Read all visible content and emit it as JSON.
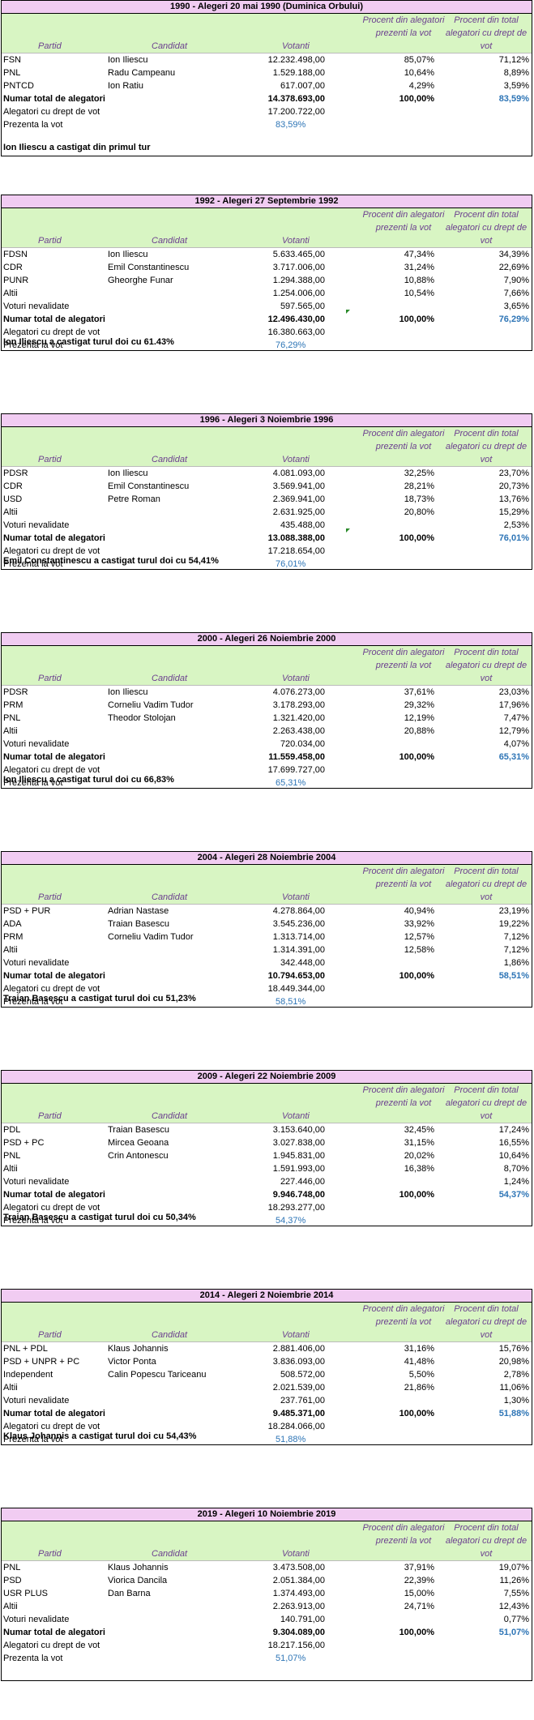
{
  "headers": {
    "partid": "Partid",
    "candidat": "Candidat",
    "votanti": "Votanti",
    "procent_prezenti": "Procent din alegatori prezenti la vot",
    "procent_total": "Procent din total alegatori cu drept de vot"
  },
  "labels": {
    "voturi_nevalidate": "Voturi nevalidate",
    "numar_total": "Numar total de alegatori",
    "alegatori_drept": "Alegatori cu drept de vot",
    "prezenta": "Prezenta la vot"
  },
  "elections": [
    {
      "title": "1990 - Alegeri 20 mai 1990 (Duminica Orbului)",
      "rows": [
        {
          "partid": "FSN",
          "candidat": "Ion Iliescu",
          "votanti": "12.232.498,00",
          "p1": "85,07%",
          "p2": "71,12%"
        },
        {
          "partid": "PNL",
          "candidat": "Radu Campeanu",
          "votanti": "1.529.188,00",
          "p1": "10,64%",
          "p2": "8,89%"
        },
        {
          "partid": "PNTCD",
          "candidat": "Ion Ratiu",
          "votanti": "617.007,00",
          "p1": "4,29%",
          "p2": "3,59%"
        }
      ],
      "invalid": null,
      "total": {
        "votanti": "14.378.693,00",
        "p1": "100,00%",
        "p2": "83,59%"
      },
      "eligible": "17.200.722,00",
      "turnout": "83,59%",
      "winner": "Ion Iliescu a castigat din primul tur"
    },
    {
      "title": "1992 - Alegeri 27 Septembrie 1992",
      "rows": [
        {
          "partid": "FDSN",
          "candidat": "Ion Iliescu",
          "votanti": "5.633.465,00",
          "p1": "47,34%",
          "p2": "34,39%"
        },
        {
          "partid": "CDR",
          "candidat": "Emil Constantinescu",
          "votanti": "3.717.006,00",
          "p1": "31,24%",
          "p2": "22,69%"
        },
        {
          "partid": "PUNR",
          "candidat": "Gheorghe Funar",
          "votanti": "1.294.388,00",
          "p1": "10,88%",
          "p2": "7,90%"
        },
        {
          "partid": "Altii",
          "candidat": "",
          "votanti": "1.254.006,00",
          "p1": "10,54%",
          "p2": "7,66%"
        }
      ],
      "invalid": {
        "votanti": "597.565,00",
        "p2": "3,65%"
      },
      "total": {
        "votanti": "12.496.430,00",
        "p1": "100,00%",
        "p2": "76,29%"
      },
      "eligible": "16.380.663,00",
      "turnout": "76,29%",
      "winner": "Ion Iliescu a castigat turul doi cu 61.43%"
    },
    {
      "title": "1996 - Alegeri 3 Noiembrie 1996",
      "rows": [
        {
          "partid": "PDSR",
          "candidat": "Ion Iliescu",
          "votanti": "4.081.093,00",
          "p1": "32,25%",
          "p2": "23,70%"
        },
        {
          "partid": "CDR",
          "candidat": "Emil Constantinescu",
          "votanti": "3.569.941,00",
          "p1": "28,21%",
          "p2": "20,73%"
        },
        {
          "partid": "USD",
          "candidat": "Petre Roman",
          "votanti": "2.369.941,00",
          "p1": "18,73%",
          "p2": "13,76%"
        },
        {
          "partid": "Altii",
          "candidat": "",
          "votanti": "2.631.925,00",
          "p1": "20,80%",
          "p2": "15,29%"
        }
      ],
      "invalid": {
        "votanti": "435.488,00",
        "p2": "2,53%"
      },
      "total": {
        "votanti": "13.088.388,00",
        "p1": "100,00%",
        "p2": "76,01%"
      },
      "eligible": "17.218.654,00",
      "turnout": "76,01%",
      "winner": "Emil Constantinescu a castigat turul doi cu 54,41%"
    },
    {
      "title": "2000 - Alegeri 26 Noiembrie 2000",
      "rows": [
        {
          "partid": "PDSR",
          "candidat": "Ion Iliescu",
          "votanti": "4.076.273,00",
          "p1": "37,61%",
          "p2": "23,03%"
        },
        {
          "partid": "PRM",
          "candidat": "Corneliu Vadim Tudor",
          "votanti": "3.178.293,00",
          "p1": "29,32%",
          "p2": "17,96%"
        },
        {
          "partid": "PNL",
          "candidat": "Theodor Stolojan",
          "votanti": "1.321.420,00",
          "p1": "12,19%",
          "p2": "7,47%"
        },
        {
          "partid": "Altii",
          "candidat": "",
          "votanti": "2.263.438,00",
          "p1": "20,88%",
          "p2": "12,79%"
        }
      ],
      "invalid": {
        "votanti": "720.034,00",
        "p2": "4,07%"
      },
      "total": {
        "votanti": "11.559.458,00",
        "p1": "100,00%",
        "p2": "65,31%"
      },
      "eligible": "17.699.727,00",
      "turnout": "65,31%",
      "winner": "Ion Iliescu a castigat turul doi cu 66,83%"
    },
    {
      "title": "2004 - Alegeri 28 Noiembrie 2004",
      "rows": [
        {
          "partid": "PSD + PUR",
          "candidat": "Adrian Nastase",
          "votanti": "4.278.864,00",
          "p1": "40,94%",
          "p2": "23,19%"
        },
        {
          "partid": "ADA",
          "candidat": "Traian Basescu",
          "votanti": "3.545.236,00",
          "p1": "33,92%",
          "p2": "19,22%"
        },
        {
          "partid": "PRM",
          "candidat": "Corneliu Vadim Tudor",
          "votanti": "1.313.714,00",
          "p1": "12,57%",
          "p2": "7,12%"
        },
        {
          "partid": "Altii",
          "candidat": "",
          "votanti": "1.314.391,00",
          "p1": "12,58%",
          "p2": "7,12%"
        }
      ],
      "invalid": {
        "votanti": "342.448,00",
        "p2": "1,86%"
      },
      "total": {
        "votanti": "10.794.653,00",
        "p1": "100,00%",
        "p2": "58,51%"
      },
      "eligible": "18.449.344,00",
      "turnout": "58,51%",
      "winner": "Traian Basescu a castigat turul doi cu 51,23%"
    },
    {
      "title": "2009 - Alegeri 22 Noiembrie 2009",
      "rows": [
        {
          "partid": "PDL",
          "candidat": "Traian Basescu",
          "votanti": "3.153.640,00",
          "p1": "32,45%",
          "p2": "17,24%"
        },
        {
          "partid": "PSD + PC",
          "candidat": "Mircea Geoana",
          "votanti": "3.027.838,00",
          "p1": "31,15%",
          "p2": "16,55%"
        },
        {
          "partid": "PNL",
          "candidat": "Crin Antonescu",
          "votanti": "1.945.831,00",
          "p1": "20,02%",
          "p2": "10,64%"
        },
        {
          "partid": "Altii",
          "candidat": "",
          "votanti": "1.591.993,00",
          "p1": "16,38%",
          "p2": "8,70%"
        }
      ],
      "invalid": {
        "votanti": "227.446,00",
        "p2": "1,24%"
      },
      "total": {
        "votanti": "9.946.748,00",
        "p1": "100,00%",
        "p2": "54,37%"
      },
      "eligible": "18.293.277,00",
      "turnout": "54,37%",
      "winner": "Traian Basescu a castigat turul doi cu 50,34%"
    },
    {
      "title": "2014 - Alegeri 2 Noiembrie 2014",
      "rows": [
        {
          "partid": "PNL + PDL",
          "candidat": "Klaus Johannis",
          "votanti": "2.881.406,00",
          "p1": "31,16%",
          "p2": "15,76%"
        },
        {
          "partid": "PSD + UNPR + PC",
          "candidat": "Victor Ponta",
          "votanti": "3.836.093,00",
          "p1": "41,48%",
          "p2": "20,98%"
        },
        {
          "partid": "Independent",
          "candidat": "Calin Popescu Tariceanu",
          "votanti": "508.572,00",
          "p1": "5,50%",
          "p2": "2,78%"
        },
        {
          "partid": "Altii",
          "candidat": "",
          "votanti": "2.021.539,00",
          "p1": "21,86%",
          "p2": "11,06%"
        }
      ],
      "invalid": {
        "votanti": "237.761,00",
        "p2": "1,30%"
      },
      "total": {
        "votanti": "9.485.371,00",
        "p1": "100,00%",
        "p2": "51,88%"
      },
      "eligible": "18.284.066,00",
      "turnout": "51,88%",
      "winner": "Klaus Johannis a castigat turul doi cu 54,43%"
    },
    {
      "title": "2019 - Alegeri 10 Noiembrie 2019",
      "rows": [
        {
          "partid": "PNL",
          "candidat": "Klaus Johannis",
          "votanti": "3.473.508,00",
          "p1": "37,91%",
          "p2": "19,07%"
        },
        {
          "partid": "PSD",
          "candidat": "Viorica Dancila",
          "votanti": "2.051.384,00",
          "p1": "22,39%",
          "p2": "11,26%"
        },
        {
          "partid": "USR PLUS",
          "candidat": "Dan Barna",
          "votanti": "1.374.493,00",
          "p1": "15,00%",
          "p2": "7,55%"
        },
        {
          "partid": "Altii",
          "candidat": "",
          "votanti": "2.263.913,00",
          "p1": "24,71%",
          "p2": "12,43%"
        }
      ],
      "invalid": {
        "votanti": "140.791,00",
        "p2": "0,77%"
      },
      "total": {
        "votanti": "9.304.089,00",
        "p1": "100,00%",
        "p2": "51,07%"
      },
      "eligible": "18.217.156,00",
      "turnout": "51,07%",
      "winner": ""
    }
  ],
  "colors": {
    "title_bg": "#f1ccf2",
    "header_bg": "#d8f5c3",
    "header_text": "#6b3f8f",
    "accent_blue": "#2e75b6"
  }
}
